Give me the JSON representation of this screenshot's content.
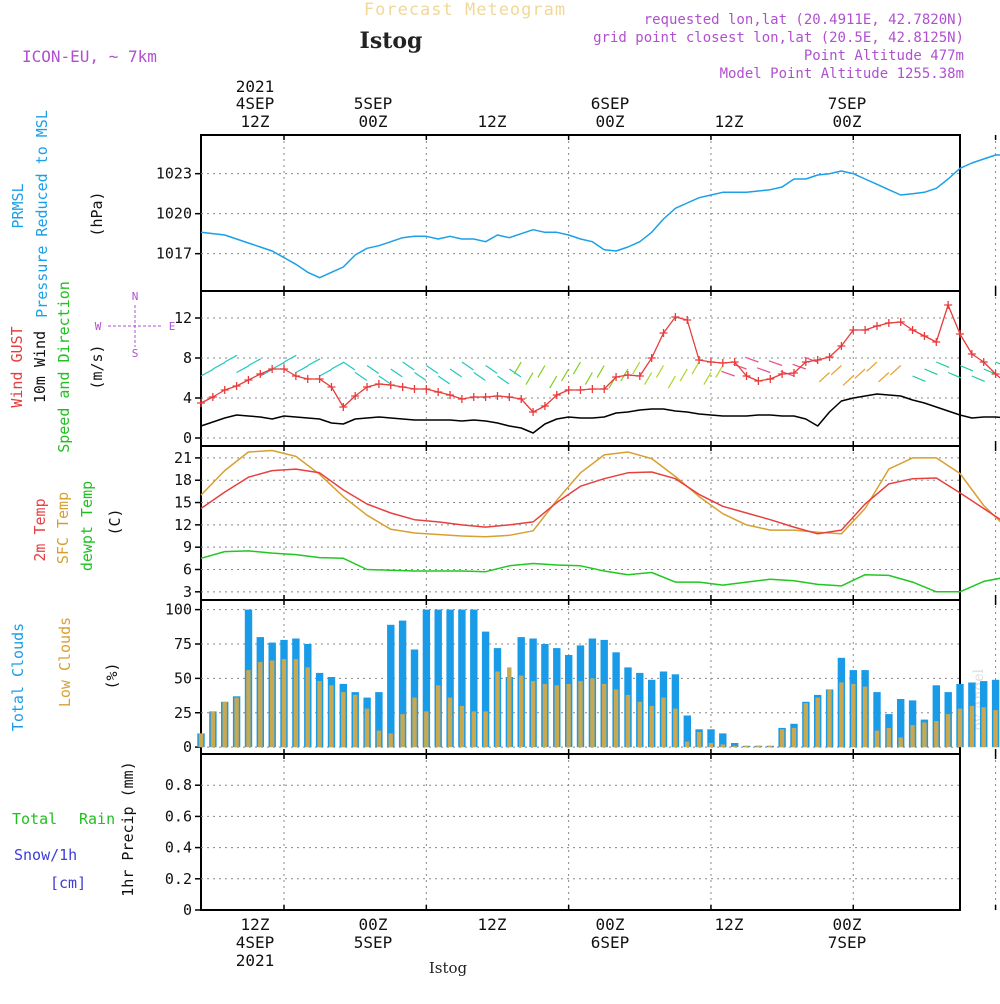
{
  "header": {
    "super_title": "Forecast Meteogram",
    "station": "Istog",
    "model": "ICON-EU, ~ 7km",
    "requested": "requested lon,lat (20.4911E, 42.7820N)",
    "grid_point": "grid point closest lon,lat (20.5E, 42.8125N)",
    "point_altitude": "Point Altitude 477m",
    "model_altitude": "Model Point Altitude 1255.38m",
    "footer_station": "Istog",
    "credit": "by Angel"
  },
  "colors": {
    "pressure": "#1aa0e8",
    "gust": "#e83c3c",
    "wind10m": "#000000",
    "t2m": "#e84040",
    "sfc": "#d8a030",
    "dewpt": "#20c820",
    "total_clouds": "#1a9be8",
    "low_clouds": "#c8a850",
    "purple": "#b050d0",
    "rain": "#20c020",
    "snow": "#3c3cd8"
  },
  "chart_data": [
    {
      "id": "time_axis",
      "type": "axis",
      "start": "2021-09-04 05Z",
      "step_hours": 1,
      "n_steps": 64,
      "top_labels": [
        {
          "hour": 7,
          "lines": [
            "2021",
            "4SEP",
            "12Z"
          ]
        },
        {
          "hour": 19,
          "lines": [
            "5SEP",
            "00Z"
          ]
        },
        {
          "hour": 31,
          "lines": [
            "12Z"
          ]
        },
        {
          "hour": 43,
          "lines": [
            "6SEP",
            "00Z"
          ]
        },
        {
          "hour": 55,
          "lines": [
            "12Z"
          ]
        },
        {
          "hour": 67,
          "lines": [
            "7SEP",
            "00Z"
          ]
        }
      ],
      "bottom_labels": [
        {
          "hour": 7,
          "lines": [
            "12Z",
            "4SEP",
            "2021"
          ]
        },
        {
          "hour": 19,
          "lines": [
            "00Z",
            "5SEP"
          ]
        },
        {
          "hour": 31,
          "lines": [
            "12Z"
          ]
        },
        {
          "hour": 43,
          "lines": [
            "00Z",
            "6SEP"
          ]
        },
        {
          "hour": 55,
          "lines": [
            "12Z"
          ]
        },
        {
          "hour": 67,
          "lines": [
            "00Z",
            "7SEP"
          ]
        }
      ]
    },
    {
      "id": "pressure",
      "type": "line",
      "title": "PRMSL Pressure Reduced to MSL",
      "ylabel": "(hPa)",
      "ylim": [
        1014.2,
        1025.9
      ],
      "yticks": [
        1017,
        1020,
        1023
      ],
      "x": [
        0,
        2,
        4,
        5,
        6,
        8,
        9,
        10,
        11,
        12,
        13,
        14,
        15,
        16,
        17,
        18,
        19,
        20,
        21,
        22,
        23,
        24,
        25,
        26,
        27,
        28,
        29,
        30,
        31,
        32,
        33,
        34,
        35,
        36,
        37,
        38,
        39,
        40,
        41,
        42,
        43,
        44,
        45,
        46,
        47,
        48,
        49,
        50,
        51,
        52,
        53,
        54,
        55,
        56,
        57,
        58,
        59,
        60,
        61,
        62,
        63,
        64,
        65,
        66,
        67,
        68,
        69,
        70,
        71,
        72,
        73,
        74,
        75,
        76
      ],
      "series": [
        {
          "name": "PRMSL",
          "values": [
            1018.6,
            1018.4,
            1017.8,
            1017.5,
            1017.2,
            1016.2,
            1015.6,
            1015.2,
            1015.6,
            1016.0,
            1016.9,
            1017.4,
            1017.6,
            1017.9,
            1018.2,
            1018.3,
            1018.3,
            1018.1,
            1018.3,
            1018.1,
            1018.1,
            1017.9,
            1018.4,
            1018.2,
            1018.5,
            1018.8,
            1018.6,
            1018.6,
            1018.4,
            1018.1,
            1017.9,
            1017.3,
            1017.2,
            1017.5,
            1017.9,
            1018.6,
            1019.6,
            1020.4,
            1020.8,
            1021.2,
            1021.4,
            1021.6,
            1021.6,
            1021.6,
            1021.7,
            1021.8,
            1022.0,
            1022.6,
            1022.6,
            1022.9,
            1023.0,
            1023.2,
            1023.0,
            1022.6,
            1022.2,
            1021.8,
            1021.4,
            1021.5,
            1021.6,
            1021.9,
            1022.6,
            1023.4,
            1023.8,
            1024.1,
            1024.4,
            1024.4,
            1024.2,
            1024.0,
            1024.0,
            1024.3,
            1024.3,
            1024.5,
            1024.3,
            1024.0
          ]
        }
      ]
    },
    {
      "id": "wind",
      "type": "line",
      "title": "Wind GUST / 10m Wind / Speed and Direction",
      "ylabel": "(m/s)",
      "compass": [
        "N",
        "W",
        "E",
        "S"
      ],
      "ylim": [
        -0.8,
        14.7
      ],
      "yticks": [
        0,
        4,
        8,
        12
      ],
      "x": [
        0,
        1,
        2,
        3,
        4,
        5,
        6,
        7,
        8,
        9,
        10,
        11,
        12,
        13,
        14,
        15,
        16,
        17,
        18,
        19,
        20,
        21,
        22,
        23,
        24,
        25,
        26,
        27,
        28,
        29,
        30,
        31,
        32,
        33,
        34,
        35,
        36,
        37,
        38,
        39,
        40,
        41,
        42,
        43,
        44,
        45,
        46,
        47,
        48,
        49,
        50,
        51,
        52,
        53,
        54,
        55,
        56,
        57,
        58,
        59,
        60,
        61,
        62,
        63,
        64,
        65,
        66,
        67,
        68,
        69,
        70,
        71,
        72,
        73,
        74,
        75,
        76
      ],
      "series": [
        {
          "name": "Wind GUST",
          "values": [
            3.5,
            4.1,
            4.8,
            5.2,
            5.8,
            6.4,
            6.9,
            6.9,
            6.2,
            5.9,
            5.9,
            5.1,
            3.1,
            4.2,
            5.1,
            5.4,
            5.3,
            5.1,
            4.9,
            4.9,
            4.6,
            4.3,
            3.9,
            4.1,
            4.1,
            4.2,
            4.1,
            3.9,
            2.6,
            3.2,
            4.3,
            4.8,
            4.8,
            4.9,
            4.9,
            6.1,
            6.3,
            6.2,
            8.0,
            10.5,
            12.1,
            11.8,
            7.8,
            7.6,
            7.5,
            7.6,
            6.2,
            5.7,
            5.9,
            6.4,
            6.5,
            7.6,
            7.8,
            8.1,
            9.2,
            10.8,
            10.8,
            11.2,
            11.5,
            11.6,
            10.8,
            10.2,
            9.6,
            13.3,
            10.4,
            8.4,
            7.6,
            6.4,
            5.4,
            5.6,
            5.9,
            6.2,
            6.3,
            5.8,
            5.8,
            5.8,
            5.8
          ]
        },
        {
          "name": "10m Wind",
          "values": [
            1.2,
            1.6,
            2.0,
            2.3,
            2.2,
            2.1,
            1.9,
            2.2,
            2.1,
            2.0,
            1.9,
            1.5,
            1.4,
            1.9,
            2.0,
            2.1,
            2.0,
            1.9,
            1.8,
            1.8,
            1.8,
            1.8,
            1.7,
            1.8,
            1.7,
            1.5,
            1.2,
            1.0,
            0.5,
            1.4,
            1.9,
            2.1,
            2.0,
            2.0,
            2.1,
            2.5,
            2.6,
            2.8,
            2.9,
            2.9,
            2.7,
            2.6,
            2.4,
            2.3,
            2.2,
            2.2,
            2.2,
            2.3,
            2.3,
            2.2,
            2.2,
            1.9,
            1.2,
            2.6,
            3.7,
            4.0,
            4.2,
            4.4,
            4.3,
            4.2,
            3.8,
            3.5,
            3.1,
            2.7,
            2.3,
            2.0,
            2.1,
            2.1,
            2.0,
            2.0,
            2.0,
            1.9,
            1.9,
            1.9,
            1.9,
            1.9,
            1.9
          ]
        }
      ]
    },
    {
      "id": "temperature",
      "type": "line",
      "title": "2m Temp / SFC Temp / dewpt Temp",
      "ylabel": "(C)",
      "ylim": [
        1.9,
        22.6
      ],
      "yticks": [
        3,
        6,
        9,
        12,
        15,
        18,
        21
      ],
      "x": [
        0,
        2,
        4,
        6,
        8,
        10,
        12,
        14,
        16,
        18,
        20,
        22,
        24,
        26,
        28,
        30,
        32,
        34,
        36,
        38,
        40,
        42,
        44,
        46,
        48,
        50,
        52,
        54,
        56,
        58,
        60,
        62,
        64,
        66,
        68,
        70,
        72,
        74,
        76
      ],
      "series": [
        {
          "name": "2m Temp",
          "values": [
            14.2,
            16.4,
            18.4,
            19.3,
            19.5,
            19.0,
            16.7,
            14.8,
            13.6,
            12.7,
            12.4,
            12.0,
            11.7,
            12.0,
            12.4,
            15.0,
            17.2,
            18.2,
            19.0,
            19.1,
            18.2,
            16.1,
            14.5,
            13.6,
            12.7,
            11.7,
            10.8,
            11.3,
            14.8,
            17.5,
            18.2,
            18.3,
            16.3,
            14.2,
            12.1,
            11.7,
            11.2,
            10.8,
            9.7
          ]
        },
        {
          "name": "SFC Temp",
          "values": [
            16.0,
            19.3,
            21.8,
            22.0,
            21.2,
            18.8,
            15.8,
            13.3,
            11.4,
            10.9,
            10.7,
            10.5,
            10.4,
            10.6,
            11.2,
            15.3,
            19.0,
            21.4,
            21.8,
            20.9,
            18.5,
            15.8,
            13.5,
            12.0,
            11.3,
            11.3,
            11.0,
            10.8,
            14.2,
            19.5,
            21.0,
            21.0,
            18.9,
            14.6,
            11.5,
            10.6,
            10.3,
            10.1,
            9.6
          ]
        },
        {
          "name": "dewpt Temp",
          "values": [
            7.5,
            8.4,
            8.5,
            8.2,
            8.0,
            7.6,
            7.5,
            6.0,
            5.9,
            5.8,
            5.8,
            5.8,
            5.7,
            6.5,
            6.8,
            6.6,
            6.5,
            5.8,
            5.3,
            5.6,
            4.3,
            4.3,
            3.9,
            4.3,
            4.7,
            4.5,
            4.0,
            3.8,
            5.3,
            5.2,
            4.3,
            3.0,
            3.0,
            4.4,
            5.0,
            5.4,
            5.6,
            5.8,
            5.6
          ]
        }
      ]
    },
    {
      "id": "clouds",
      "type": "bar",
      "title": "Total Clouds / Low Clouds",
      "ylabel": "(%)",
      "ylim": [
        -5,
        107
      ],
      "yticks": [
        0,
        25,
        50,
        75,
        100
      ],
      "x": [
        0,
        1,
        2,
        3,
        4,
        5,
        6,
        7,
        8,
        9,
        10,
        11,
        12,
        13,
        14,
        15,
        16,
        17,
        18,
        19,
        20,
        21,
        22,
        23,
        24,
        25,
        26,
        27,
        28,
        29,
        30,
        31,
        32,
        33,
        34,
        35,
        36,
        37,
        38,
        39,
        40,
        41,
        42,
        43,
        44,
        45,
        46,
        47,
        48,
        49,
        50,
        51,
        52,
        53,
        54,
        55,
        56,
        57,
        58,
        59,
        60,
        61,
        62,
        63,
        64,
        65,
        66,
        67,
        68,
        69,
        70,
        71,
        72,
        73,
        74,
        75,
        76
      ],
      "series": [
        {
          "name": "Total Clouds",
          "values": [
            10,
            26,
            33,
            37,
            100,
            80,
            76,
            78,
            79,
            75,
            54,
            51,
            46,
            40,
            36,
            40,
            89,
            92,
            71,
            100,
            100,
            100,
            100,
            100,
            84,
            72,
            51,
            80,
            79,
            75,
            72,
            67,
            74,
            79,
            78,
            69,
            58,
            54,
            49,
            55,
            53,
            23,
            13,
            13,
            10,
            3,
            1,
            1,
            1,
            14,
            17,
            33,
            38,
            42,
            65,
            56,
            56,
            40,
            24,
            35,
            34,
            20,
            45,
            40,
            46,
            47,
            48,
            49,
            49,
            46,
            26,
            16,
            10,
            1,
            1,
            1,
            1
          ]
        },
        {
          "name": "Low Clouds",
          "values": [
            10,
            26,
            33,
            36,
            56,
            62,
            63,
            64,
            64,
            58,
            48,
            45,
            40,
            38,
            28,
            12,
            10,
            24,
            36,
            26,
            45,
            36,
            30,
            26,
            26,
            55,
            58,
            52,
            48,
            46,
            45,
            46,
            48,
            50,
            46,
            42,
            38,
            33,
            30,
            36,
            28,
            4,
            11,
            3,
            2,
            1,
            1,
            1,
            1,
            13,
            14,
            32,
            36,
            42,
            47,
            46,
            44,
            12,
            14,
            7,
            16,
            18,
            19,
            24,
            28,
            30,
            29,
            27,
            23,
            16,
            13,
            5,
            3,
            1,
            1,
            1,
            1
          ]
        }
      ]
    },
    {
      "id": "precip",
      "type": "bar",
      "title": "Total Rain / Snow/1h [cm]",
      "ylabel": "1hr Precip (mm)",
      "ylim": [
        0,
        1.0
      ],
      "yticks": [
        0,
        0.2,
        0.4,
        0.6,
        0.8
      ],
      "series": [
        {
          "name": "Total Rain",
          "values": []
        },
        {
          "name": "Snow/1h",
          "values": []
        }
      ]
    }
  ],
  "panels": {
    "pressure_labels": [
      "PRMSL",
      "Pressure Reduced to MSL",
      "(hPa)"
    ],
    "wind_labels": [
      "Wind GUST",
      "10m Wind",
      "Speed and Direction",
      "(m/s)"
    ],
    "temp_labels": [
      "2m Temp",
      "SFC Temp",
      "dewpt Temp",
      "(C)"
    ],
    "cloud_labels": [
      "Total Clouds",
      "Low Clouds",
      "(%)"
    ],
    "precip_labels": [
      "Total",
      "Rain",
      "Snow/1h",
      "[cm]",
      "1hr Precip (mm)"
    ]
  }
}
